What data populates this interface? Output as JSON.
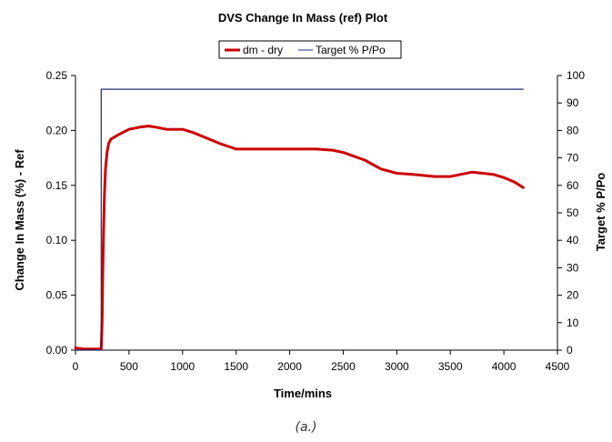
{
  "chart_data": {
    "type": "line",
    "title": "DVS Change In Mass (ref) Plot",
    "xlabel": "Time/mins",
    "ylabel": "Change In Mass (%) - Ref",
    "y2label": "Target % P/Po",
    "xlim": [
      0,
      4500
    ],
    "ylim": [
      0,
      0.25
    ],
    "y2lim": [
      0,
      100
    ],
    "x_ticks": [
      "0",
      "500",
      "1000",
      "1500",
      "2000",
      "2500",
      "3000",
      "3500",
      "4000",
      "4500"
    ],
    "y_ticks": [
      "0.00",
      "0.05",
      "0.10",
      "0.15",
      "0.20",
      "0.25"
    ],
    "y2_ticks": [
      "0",
      "10",
      "20",
      "30",
      "40",
      "50",
      "60",
      "70",
      "80",
      "90",
      "100"
    ],
    "grid": false,
    "legend_position": "top-center",
    "series": [
      {
        "name": "dm - dry",
        "axis": "left",
        "color": "#cc0000",
        "points": [
          [
            0,
            0.002
          ],
          [
            80,
            0.001
          ],
          [
            150,
            0.001
          ],
          [
            230,
            0.001
          ],
          [
            240,
            0.001
          ],
          [
            250,
            0.03
          ],
          [
            255,
            0.07
          ],
          [
            262,
            0.11
          ],
          [
            270,
            0.14
          ],
          [
            280,
            0.165
          ],
          [
            295,
            0.18
          ],
          [
            310,
            0.188
          ],
          [
            330,
            0.192
          ],
          [
            400,
            0.196
          ],
          [
            500,
            0.201
          ],
          [
            600,
            0.203
          ],
          [
            680,
            0.204
          ],
          [
            750,
            0.203
          ],
          [
            850,
            0.201
          ],
          [
            1000,
            0.201
          ],
          [
            1100,
            0.198
          ],
          [
            1200,
            0.194
          ],
          [
            1350,
            0.188
          ],
          [
            1500,
            0.183
          ],
          [
            1700,
            0.183
          ],
          [
            2000,
            0.183
          ],
          [
            2250,
            0.183
          ],
          [
            2400,
            0.182
          ],
          [
            2500,
            0.18
          ],
          [
            2700,
            0.173
          ],
          [
            2850,
            0.165
          ],
          [
            3000,
            0.161
          ],
          [
            3150,
            0.16
          ],
          [
            3250,
            0.159
          ],
          [
            3350,
            0.158
          ],
          [
            3500,
            0.158
          ],
          [
            3600,
            0.16
          ],
          [
            3700,
            0.162
          ],
          [
            3800,
            0.161
          ],
          [
            3900,
            0.16
          ],
          [
            4000,
            0.157
          ],
          [
            4100,
            0.153
          ],
          [
            4180,
            0.148
          ]
        ]
      },
      {
        "name": "Target % P/Po",
        "axis": "right",
        "color": "#1f2a6b",
        "points": [
          [
            0,
            0
          ],
          [
            240,
            0
          ],
          [
            240,
            95
          ],
          [
            4180,
            95
          ]
        ]
      }
    ]
  },
  "caption": "(a.)"
}
